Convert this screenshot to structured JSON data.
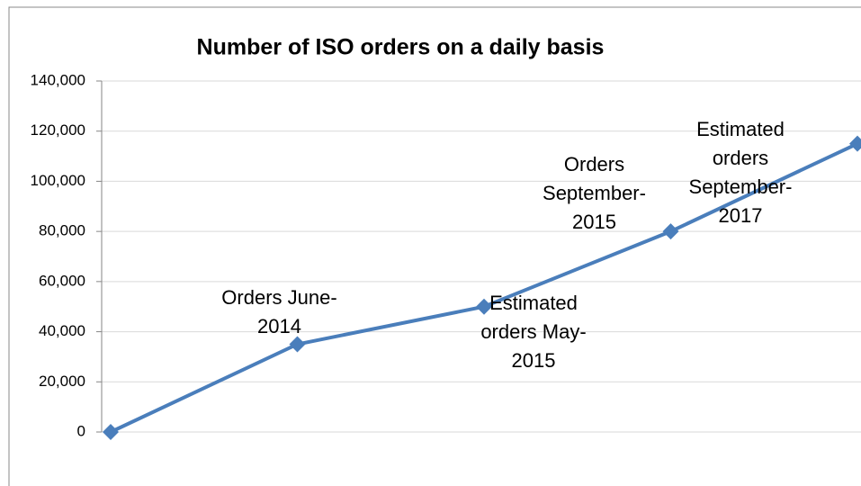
{
  "chart_data": {
    "type": "line",
    "title": "Number of ISO orders on a daily basis",
    "categories": [
      null,
      null,
      null,
      null,
      null
    ],
    "series": [
      {
        "name": null,
        "color": "#4a7ebb",
        "values": [
          0,
          35000,
          50000,
          80000,
          115000
        ]
      }
    ],
    "annotations": [
      "Orders June-2014",
      "Estimated orders May-2015",
      "Orders September-2015",
      "Estimated orders September-2017"
    ],
    "ylim": [
      0,
      140000
    ],
    "yticks": [
      0,
      {
        "value": 20000,
        "label": "20,000"
      },
      {
        "value": 40000,
        "label": "40,000"
      },
      {
        "value": 60000,
        "label": "60,000"
      },
      {
        "value": 80000,
        "label": "80,000"
      },
      {
        "value": 100000,
        "label": "100,000"
      },
      {
        "value": 120000,
        "label": "120,000"
      },
      {
        "value": 140000,
        "label": "140,000"
      }
    ],
    "grid": true
  }
}
